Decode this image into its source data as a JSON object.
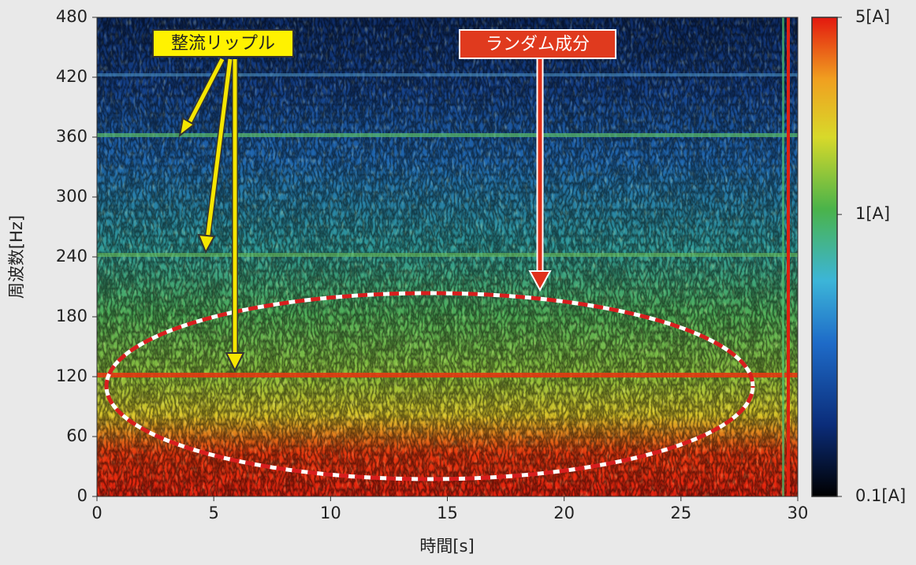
{
  "chart_data": {
    "type": "heatmap",
    "x_label": "時間[s]",
    "y_label": "周波数[Hz]",
    "xlim": [
      0,
      30
    ],
    "xticks": [
      0,
      5,
      10,
      15,
      20,
      25,
      30
    ],
    "ylim": [
      0,
      480
    ],
    "yticks": [
      0,
      60,
      120,
      180,
      240,
      300,
      360,
      420,
      480
    ],
    "colorbar": {
      "scale": "log",
      "clim": [
        0.1,
        5
      ],
      "ticks": [
        {
          "value": 5,
          "label": "5[A]"
        },
        {
          "value": 1,
          "label": "1[A]"
        },
        {
          "value": 0.1,
          "label": "0.1[A]"
        }
      ]
    },
    "annotations": [
      "整流リップル",
      "ランダム成分"
    ]
  }
}
